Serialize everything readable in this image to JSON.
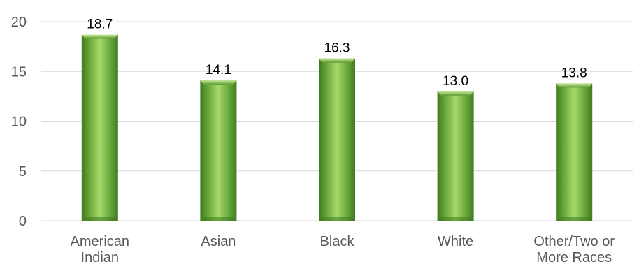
{
  "chart_data": {
    "type": "bar",
    "title": "",
    "xlabel": "",
    "ylabel": "",
    "categories": [
      "American Indian",
      "Asian",
      "Black",
      "White",
      "Other/Two or More Races"
    ],
    "category_lines": [
      [
        "American",
        "Indian"
      ],
      [
        "Asian"
      ],
      [
        "Black"
      ],
      [
        "White"
      ],
      [
        "Other/Two or",
        "More Races"
      ]
    ],
    "values": [
      18.7,
      14.1,
      16.3,
      13.0,
      13.8
    ],
    "value_labels": [
      "18.7",
      "14.1",
      "16.3",
      "13.0",
      "13.8"
    ],
    "ylim": [
      0,
      20
    ],
    "yticks": [
      0,
      5,
      10,
      15,
      20
    ],
    "ytick_labels": [
      "0",
      "5",
      "10",
      "15",
      "20"
    ],
    "grid": true,
    "legend": "none",
    "colors": {
      "bar_light": "#a6d96a",
      "bar_mid": "#70ad47",
      "bar_dark": "#3f7a1f",
      "grid": "#d9d9d9",
      "axis_text": "#595959",
      "label_text": "#000000"
    }
  }
}
